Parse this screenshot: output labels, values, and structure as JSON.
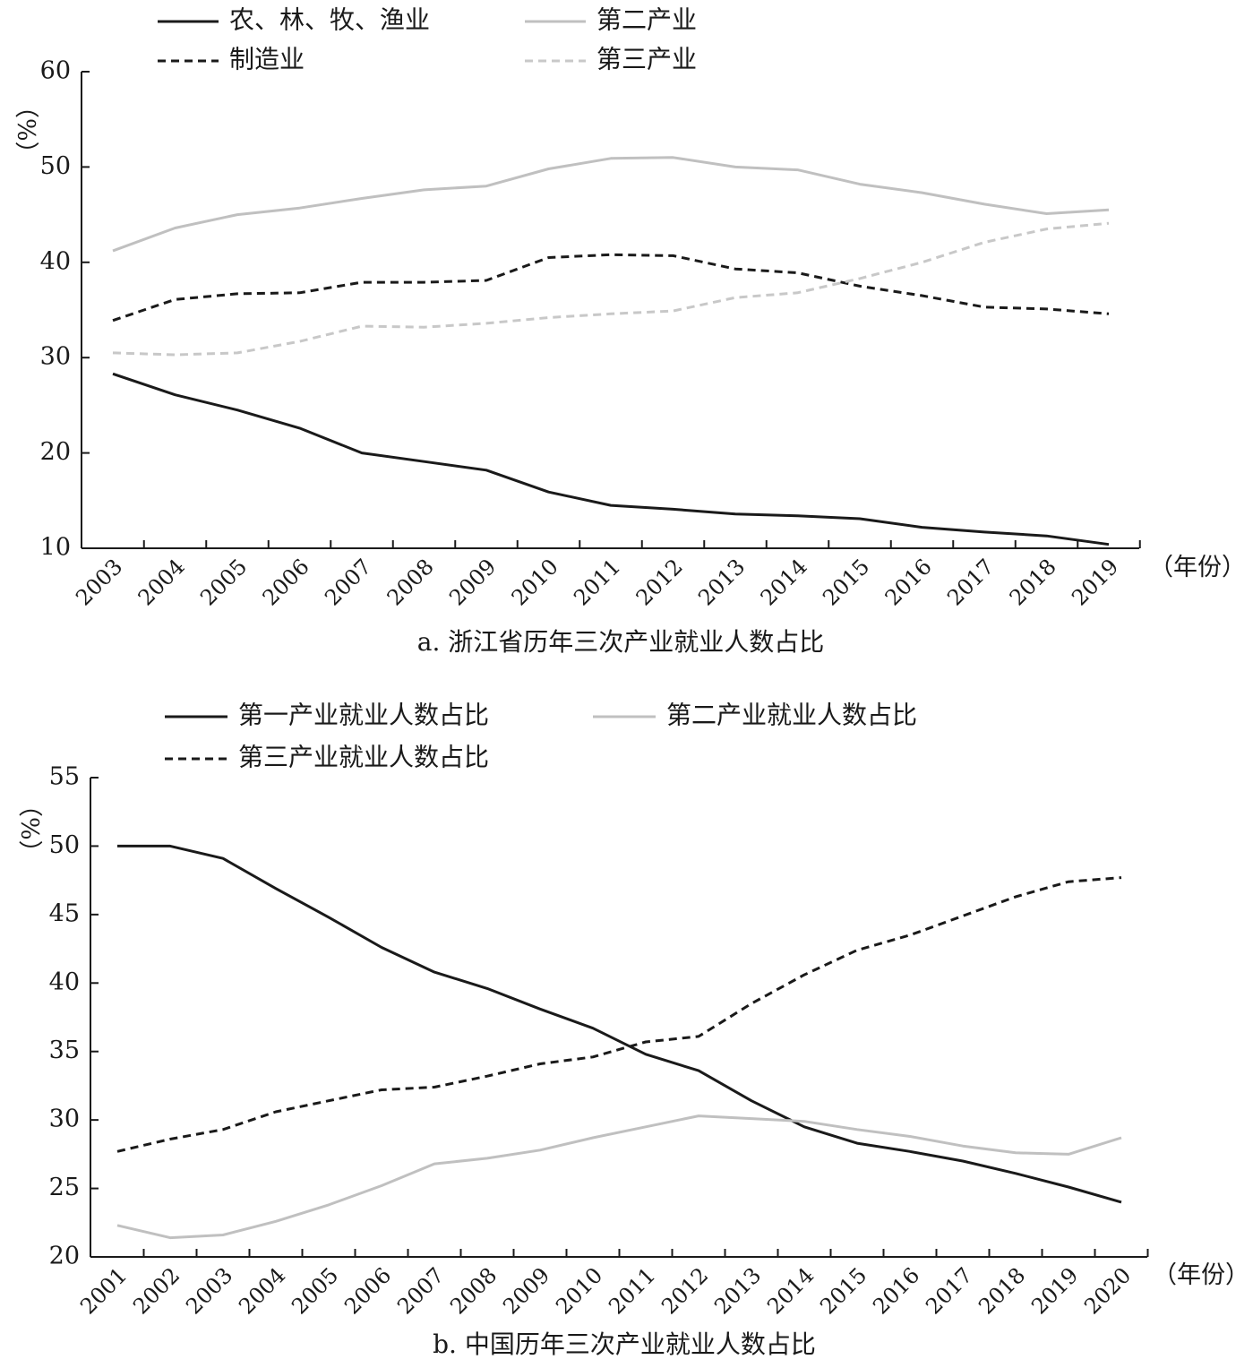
{
  "chart_data": [
    {
      "type": "line",
      "caption": "a. 浙江省历年三次产业就业人数占比",
      "ylabel": "（%）",
      "xlabel": "（年份）",
      "ylim": [
        10,
        60
      ],
      "yticks": [
        10,
        20,
        30,
        40,
        50,
        60
      ],
      "x": [
        "2003",
        "2004",
        "2005",
        "2006",
        "2007",
        "2008",
        "2009",
        "2010",
        "2011",
        "2012",
        "2013",
        "2014",
        "2015",
        "2016",
        "2017",
        "2018",
        "2019"
      ],
      "legend_placement": "top",
      "series": [
        {
          "name": "农、林、牧、渔业",
          "color": "#1a1a1a",
          "dash": "solid",
          "values": [
            28.3,
            26.1,
            24.5,
            22.6,
            20.0,
            19.1,
            18.2,
            15.9,
            14.5,
            14.1,
            13.6,
            13.4,
            13.1,
            12.2,
            11.7,
            11.3,
            10.4
          ]
        },
        {
          "name": "第二产业",
          "color": "#c0c0c0",
          "dash": "solid",
          "values": [
            41.2,
            43.6,
            45.0,
            45.7,
            46.7,
            47.6,
            48.0,
            49.8,
            50.9,
            51.0,
            50.0,
            49.7,
            48.2,
            47.3,
            46.1,
            45.1,
            45.5
          ]
        },
        {
          "name": "制造业",
          "color": "#1a1a1a",
          "dash": "dashed",
          "values": [
            33.9,
            36.1,
            36.7,
            36.8,
            37.9,
            37.9,
            38.1,
            40.5,
            40.8,
            40.7,
            39.3,
            38.9,
            37.5,
            36.5,
            35.3,
            35.1,
            34.6
          ]
        },
        {
          "name": "第三产业",
          "color": "#c8c8c8",
          "dash": "dashed",
          "values": [
            30.5,
            30.3,
            30.5,
            31.7,
            33.3,
            33.2,
            33.6,
            34.2,
            34.6,
            34.9,
            36.3,
            36.8,
            38.3,
            40.0,
            42.1,
            43.5,
            44.1
          ]
        }
      ]
    },
    {
      "type": "line",
      "caption": "b. 中国历年三次产业就业人数占比",
      "ylabel": "（%）",
      "xlabel": "（年份）",
      "ylim": [
        20,
        55
      ],
      "yticks": [
        20,
        25,
        30,
        35,
        40,
        45,
        50,
        55
      ],
      "x": [
        "2001",
        "2002",
        "2003",
        "2004",
        "2005",
        "2006",
        "2007",
        "2008",
        "2009",
        "2010",
        "2011",
        "2012",
        "2013",
        "2014",
        "2015",
        "2016",
        "2017",
        "2018",
        "2019",
        "2020"
      ],
      "legend_placement": "top",
      "series": [
        {
          "name": "第一产业就业人数占比",
          "color": "#1a1a1a",
          "dash": "solid",
          "values": [
            50.0,
            50.0,
            49.1,
            46.9,
            44.8,
            42.6,
            40.8,
            39.6,
            38.1,
            36.7,
            34.8,
            33.6,
            31.4,
            29.5,
            28.3,
            27.7,
            27.0,
            26.1,
            25.1,
            24.0
          ]
        },
        {
          "name": "第二产业就业人数占比",
          "color": "#c0c0c0",
          "dash": "solid",
          "values": [
            22.3,
            21.4,
            21.6,
            22.6,
            23.8,
            25.2,
            26.8,
            27.2,
            27.8,
            28.7,
            29.5,
            30.3,
            30.1,
            29.9,
            29.3,
            28.8,
            28.1,
            27.6,
            27.5,
            28.7
          ]
        },
        {
          "name": "第三产业就业人数占比",
          "color": "#1a1a1a",
          "dash": "dashed",
          "values": [
            27.7,
            28.6,
            29.3,
            30.6,
            31.4,
            32.2,
            32.4,
            33.2,
            34.1,
            34.6,
            35.7,
            36.1,
            38.5,
            40.6,
            42.4,
            43.5,
            44.9,
            46.3,
            47.4,
            47.7
          ]
        }
      ]
    }
  ]
}
